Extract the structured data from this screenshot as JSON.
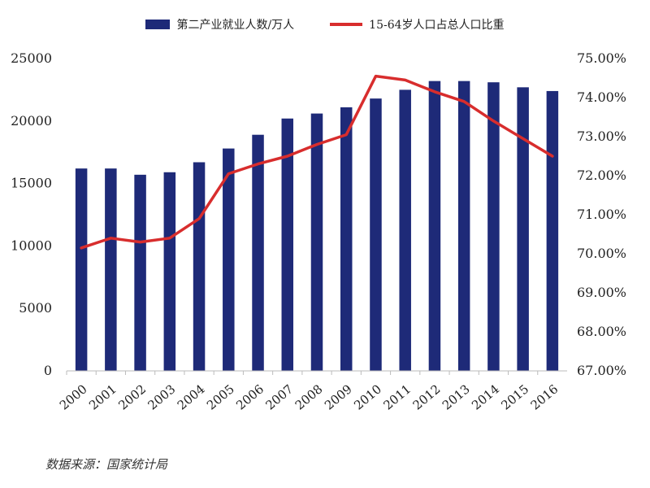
{
  "chart_data": {
    "type": "bar+line",
    "categories": [
      "2000",
      "2001",
      "2002",
      "2003",
      "2004",
      "2005",
      "2006",
      "2007",
      "2008",
      "2009",
      "2010",
      "2011",
      "2012",
      "2013",
      "2014",
      "2015",
      "2016"
    ],
    "series": [
      {
        "name": "第二产业就业人数/万人",
        "type": "bar",
        "axis": "left",
        "color": "#1e2a78",
        "values": [
          16200,
          16200,
          15700,
          15900,
          16700,
          17800,
          18900,
          20200,
          20600,
          21100,
          21800,
          22500,
          23200,
          23200,
          23100,
          22700,
          22400
        ]
      },
      {
        "name": "15-64岁人口占总人口比重",
        "type": "line",
        "axis": "right",
        "color": "#d82d2d",
        "values": [
          70.15,
          70.4,
          70.3,
          70.4,
          70.9,
          72.05,
          72.3,
          72.5,
          72.8,
          73.05,
          74.55,
          74.45,
          74.15,
          73.9,
          73.4,
          72.95,
          72.5
        ]
      }
    ],
    "y_left": {
      "min": 0,
      "max": 25000,
      "ticks": [
        "0",
        "5000",
        "10000",
        "15000",
        "20000",
        "25000"
      ]
    },
    "y_right": {
      "min": 67,
      "max": 75,
      "ticks": [
        "67.00%",
        "68.00%",
        "69.00%",
        "70.00%",
        "71.00%",
        "72.00%",
        "73.00%",
        "74.00%",
        "75.00%"
      ]
    },
    "legend_position": "top-center"
  },
  "legend": {
    "bar_label": "第二产业就业人数/万人",
    "line_label": "15-64岁人口占总人口比重",
    "bar_color": "#1e2a78",
    "line_color": "#d82d2d"
  },
  "source": "数据来源：国家统计局"
}
